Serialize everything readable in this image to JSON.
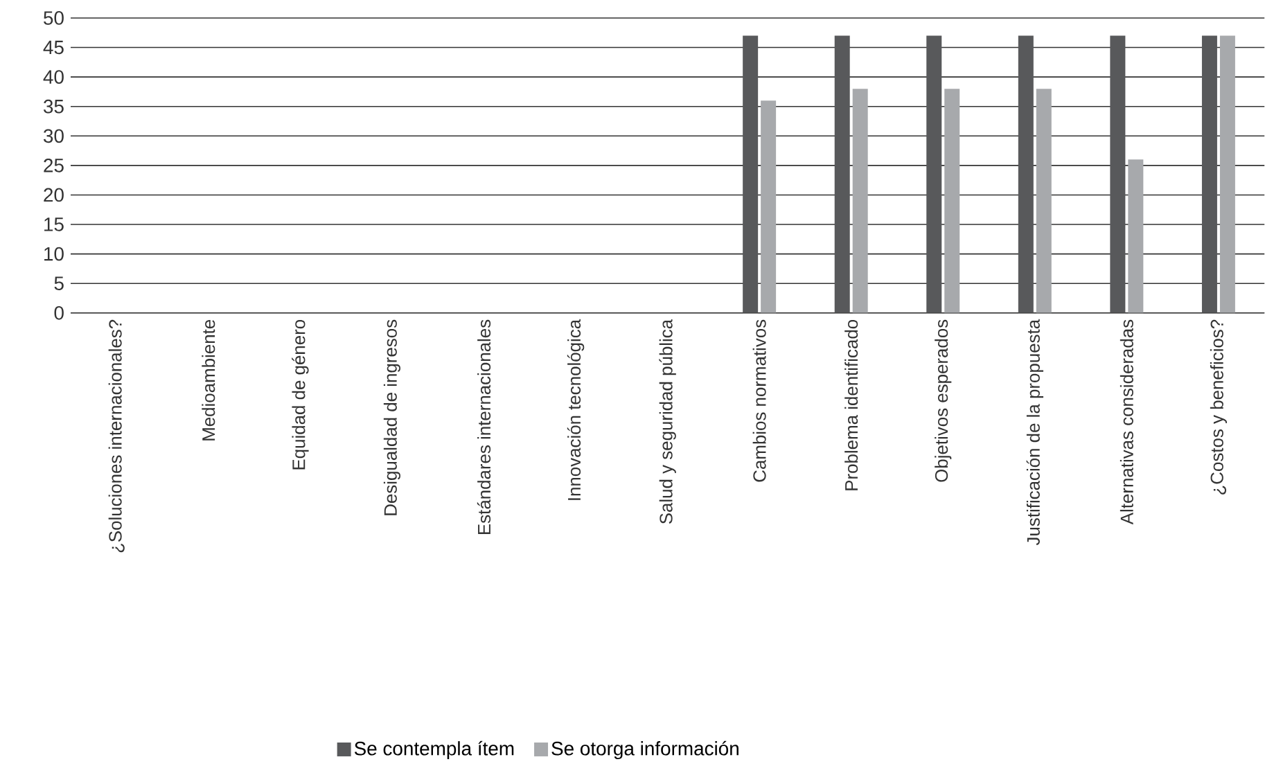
{
  "chart_data": {
    "type": "bar",
    "categories": [
      "¿Soluciones internacionales?",
      "Medioambiente",
      "Equidad de género",
      "Desigualdad de ingresos",
      "Estándares  internacionales",
      "Innovación  tecnológica",
      "Salud y seguridad pública",
      "Cambios normativos",
      "Problema identificado",
      "Objetivos esperados",
      "Justificación de la propuesta",
      "Alternativas consideradas",
      "¿Costos y beneficios?"
    ],
    "series": [
      {
        "name": "Se contempla ítem",
        "color": "#58595b",
        "values": [
          0,
          0,
          0,
          0,
          0,
          0,
          0,
          47,
          47,
          47,
          47,
          47,
          47
        ]
      },
      {
        "name": "Se otorga información",
        "color": "#a7a9ac",
        "values": [
          0,
          0,
          0,
          0,
          0,
          0,
          0,
          36,
          38,
          38,
          38,
          26,
          47
        ]
      }
    ],
    "ylim": [
      0,
      50
    ],
    "yticks": [
      0,
      5,
      10,
      15,
      20,
      25,
      30,
      35,
      40,
      45,
      50
    ],
    "grid": "y",
    "legend": "bottom"
  }
}
